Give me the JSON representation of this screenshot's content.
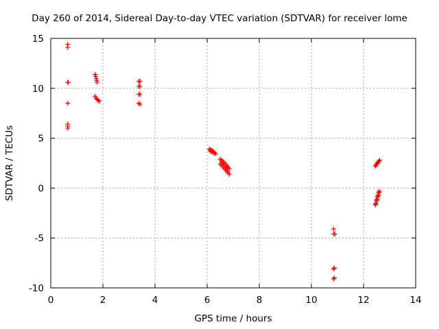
{
  "chart_data": {
    "type": "scatter",
    "title": "Day 260 of 2014, Sidereal Day-to-day VTEC variation (SDTVAR) for receiver lome",
    "xlabel": "GPS time / hours",
    "ylabel": "SDTVAR / TECUs",
    "xlim": [
      0,
      14
    ],
    "ylim": [
      -10,
      15
    ],
    "xticks": [
      "0",
      "2",
      "4",
      "6",
      "8",
      "10",
      "12",
      "14"
    ],
    "yticks": [
      "15",
      "10",
      "5",
      "0",
      "-5",
      "-10"
    ],
    "xtick_values": [
      0,
      2,
      4,
      6,
      8,
      10,
      12,
      14
    ],
    "ytick_values": [
      15,
      10,
      5,
      0,
      -5,
      -10
    ],
    "grid": true,
    "marker": "+",
    "color": "#ff0000",
    "series": [
      {
        "name": "SDTVAR",
        "points": [
          [
            0.65,
            14.4
          ],
          [
            0.65,
            14.1
          ],
          [
            0.65,
            10.6
          ],
          [
            0.67,
            10.6
          ],
          [
            0.65,
            8.5
          ],
          [
            0.65,
            6.4
          ],
          [
            0.65,
            6.2
          ],
          [
            0.65,
            6.0
          ],
          [
            1.7,
            11.4
          ],
          [
            1.72,
            11.2
          ],
          [
            1.74,
            11.0
          ],
          [
            1.76,
            10.8
          ],
          [
            1.78,
            10.6
          ],
          [
            1.7,
            9.2
          ],
          [
            1.74,
            9.0
          ],
          [
            1.78,
            8.9
          ],
          [
            1.82,
            8.8
          ],
          [
            1.86,
            8.7
          ],
          [
            3.38,
            10.7
          ],
          [
            3.42,
            10.7
          ],
          [
            3.38,
            10.2
          ],
          [
            3.42,
            10.2
          ],
          [
            3.38,
            9.4
          ],
          [
            3.42,
            9.4
          ],
          [
            3.38,
            8.5
          ],
          [
            3.42,
            8.4
          ],
          [
            6.08,
            3.9
          ],
          [
            6.12,
            3.85
          ],
          [
            6.16,
            3.8
          ],
          [
            6.2,
            3.75
          ],
          [
            6.24,
            3.65
          ],
          [
            6.28,
            3.55
          ],
          [
            6.32,
            3.45
          ],
          [
            6.12,
            3.7
          ],
          [
            6.18,
            3.6
          ],
          [
            6.26,
            3.5
          ],
          [
            6.5,
            2.9
          ],
          [
            6.55,
            2.8
          ],
          [
            6.6,
            2.7
          ],
          [
            6.65,
            2.55
          ],
          [
            6.7,
            2.4
          ],
          [
            6.75,
            2.25
          ],
          [
            6.8,
            2.1
          ],
          [
            6.85,
            1.95
          ],
          [
            6.5,
            2.4
          ],
          [
            6.55,
            2.3
          ],
          [
            6.6,
            2.15
          ],
          [
            6.65,
            2.0
          ],
          [
            6.7,
            1.85
          ],
          [
            6.75,
            1.7
          ],
          [
            6.8,
            1.55
          ],
          [
            6.85,
            1.4
          ],
          [
            6.55,
            2.6
          ],
          [
            6.62,
            2.45
          ],
          [
            6.7,
            2.2
          ],
          [
            6.78,
            1.95
          ],
          [
            10.85,
            -4.1
          ],
          [
            10.85,
            -4.6
          ],
          [
            10.9,
            -4.6
          ],
          [
            10.85,
            -8.1
          ],
          [
            10.88,
            -8.0
          ],
          [
            10.85,
            -9.1
          ],
          [
            10.88,
            -9.0
          ],
          [
            12.45,
            2.2
          ],
          [
            12.48,
            2.3
          ],
          [
            12.5,
            2.4
          ],
          [
            12.53,
            2.5
          ],
          [
            12.56,
            2.6
          ],
          [
            12.59,
            2.7
          ],
          [
            12.62,
            2.8
          ],
          [
            12.45,
            -1.7
          ],
          [
            12.48,
            -1.5
          ],
          [
            12.5,
            -1.3
          ],
          [
            12.52,
            -1.1
          ],
          [
            12.54,
            -0.9
          ],
          [
            12.56,
            -0.7
          ],
          [
            12.58,
            -0.5
          ],
          [
            12.6,
            -0.3
          ],
          [
            12.46,
            -1.6
          ],
          [
            12.5,
            -1.2
          ],
          [
            12.55,
            -0.8
          ],
          [
            12.6,
            -0.4
          ]
        ]
      }
    ]
  }
}
